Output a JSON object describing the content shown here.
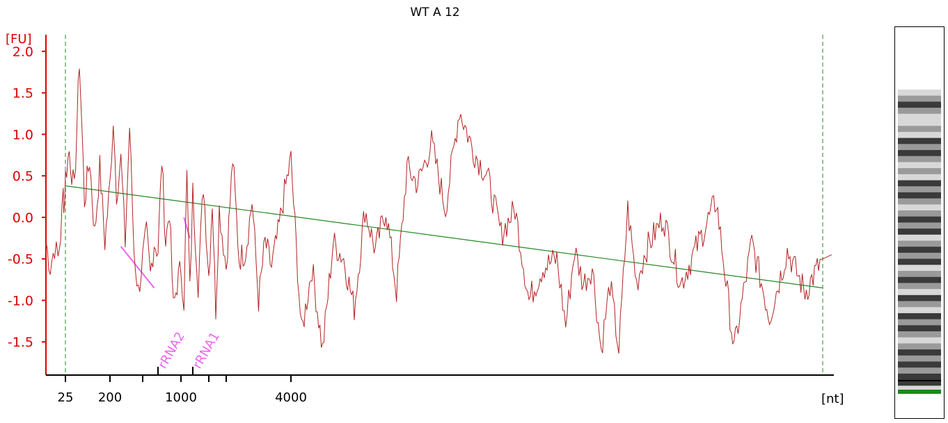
{
  "chart_data": {
    "type": "line",
    "title": "WT A 12",
    "ylabel": "[FU]",
    "xlabel": "[nt]",
    "ylim": [
      -1.9,
      2.2
    ],
    "y_ticks": [
      "2.0",
      "1.5",
      "1.0",
      "0.5",
      "0.0",
      "-0.5",
      "-1.0",
      "-1.5"
    ],
    "y_tick_values": [
      2.0,
      1.5,
      1.0,
      0.5,
      0.0,
      -0.5,
      -1.0,
      -1.5
    ],
    "x_ticks": [
      "25",
      "200",
      "1000",
      "4000"
    ],
    "x_tick_positions": [
      25,
      200,
      1000,
      4000
    ],
    "x_unlabeled_ticks": [
      500,
      1500,
      2000
    ],
    "x_range": [
      -200,
      50000
    ],
    "marker_lines": [
      25,
      50000
    ],
    "annotations": [
      {
        "text": "rRNA2",
        "x": 700
      },
      {
        "text": "rRNA1",
        "x": 1200
      }
    ],
    "baseline": {
      "start": [
        25,
        0.38
      ],
      "end": [
        50000,
        -0.85
      ]
    },
    "series": [
      {
        "x": [
          -200,
          -150,
          -100,
          -60,
          -30,
          0,
          10,
          25,
          40,
          60,
          80,
          100,
          120,
          140,
          160,
          180,
          200,
          230,
          260,
          300,
          340,
          380,
          420,
          460,
          500,
          550,
          600,
          650,
          700,
          750,
          800,
          850,
          900,
          950,
          1000,
          1050,
          1100,
          1150,
          1200,
          1300,
          1400,
          1500,
          1600,
          1700,
          1800,
          2000,
          2200,
          2400,
          2600,
          2800,
          3000,
          3200,
          3400,
          3600,
          3800,
          4000,
          4500,
          5000,
          5500,
          6000,
          6500,
          7000,
          7500,
          8000,
          8500,
          9000,
          9500,
          10000,
          11000,
          12000,
          13000,
          14000,
          15000,
          16000,
          17000,
          18000,
          19000,
          20000,
          21000,
          22000,
          23000,
          24000,
          25000,
          26000,
          27000,
          28000,
          29000,
          30000,
          32000,
          34000,
          36000,
          38000,
          40000,
          42000,
          44000,
          46000,
          48000,
          50000
        ],
        "values": [
          -0.3,
          -0.6,
          -0.35,
          -0.5,
          -0.2,
          0.3,
          0.1,
          0.5,
          0.8,
          0.3,
          1.9,
          0.2,
          0.7,
          -0.2,
          0.6,
          -0.3,
          0.4,
          1.2,
          0.3,
          0.7,
          -0.3,
          1.1,
          -0.4,
          -0.9,
          -0.5,
          -0.2,
          -0.7,
          -0.3,
          -0.4,
          0.7,
          -0.3,
          0.1,
          -1.1,
          -0.8,
          -0.6,
          -1.0,
          0.5,
          -0.9,
          0.3,
          -0.8,
          0.4,
          -0.7,
          0.2,
          -1.1,
          0.1,
          -0.6,
          0.7,
          -0.5,
          -0.4,
          0.2,
          -1.0,
          -0.3,
          -0.6,
          -0.2,
          0.3,
          0.7,
          -1.4,
          -0.6,
          -1.6,
          -0.3,
          -0.5,
          -1.1,
          0.1,
          -0.4,
          0.1,
          -0.9,
          0.6,
          0.4,
          0.9,
          0.1,
          1.3,
          0.8,
          0.5,
          -0.2,
          0.1,
          -1.0,
          -0.6,
          -0.5,
          -1.3,
          -0.4,
          -0.8,
          -0.6,
          -1.6,
          -0.8,
          -1.6,
          0.1,
          -0.8,
          -0.4,
          0.0,
          -0.8,
          -0.3,
          0.2,
          -1.6,
          -0.3,
          -1.2,
          -0.4,
          -0.9,
          -0.5
        ]
      }
    ],
    "grid": false,
    "legend": "none",
    "colors": {
      "axes": "#dd0000",
      "trace": "#b22222",
      "baseline": "#228822",
      "markers": "#228822",
      "annotation": "#ee66ee",
      "gel_marker": "#1a8a1a"
    }
  },
  "gel_lane": {
    "bands": [
      "light",
      "mid",
      "dark",
      "mid",
      "light",
      "light",
      "mid",
      "light",
      "dark",
      "mid",
      "dark",
      "mid",
      "light",
      "mid",
      "light",
      "dark",
      "mid",
      "dark",
      "mid",
      "light",
      "mid",
      "dark",
      "mid",
      "dark",
      "light",
      "mid",
      "dark",
      "mid",
      "dark",
      "light",
      "mid",
      "dark",
      "mid",
      "light",
      "dark",
      "mid",
      "light",
      "dark",
      "mid",
      "dark",
      "mid",
      "light",
      "mid",
      "dark",
      "mid",
      "dark",
      "mid",
      "dark",
      "dark",
      "light"
    ]
  }
}
